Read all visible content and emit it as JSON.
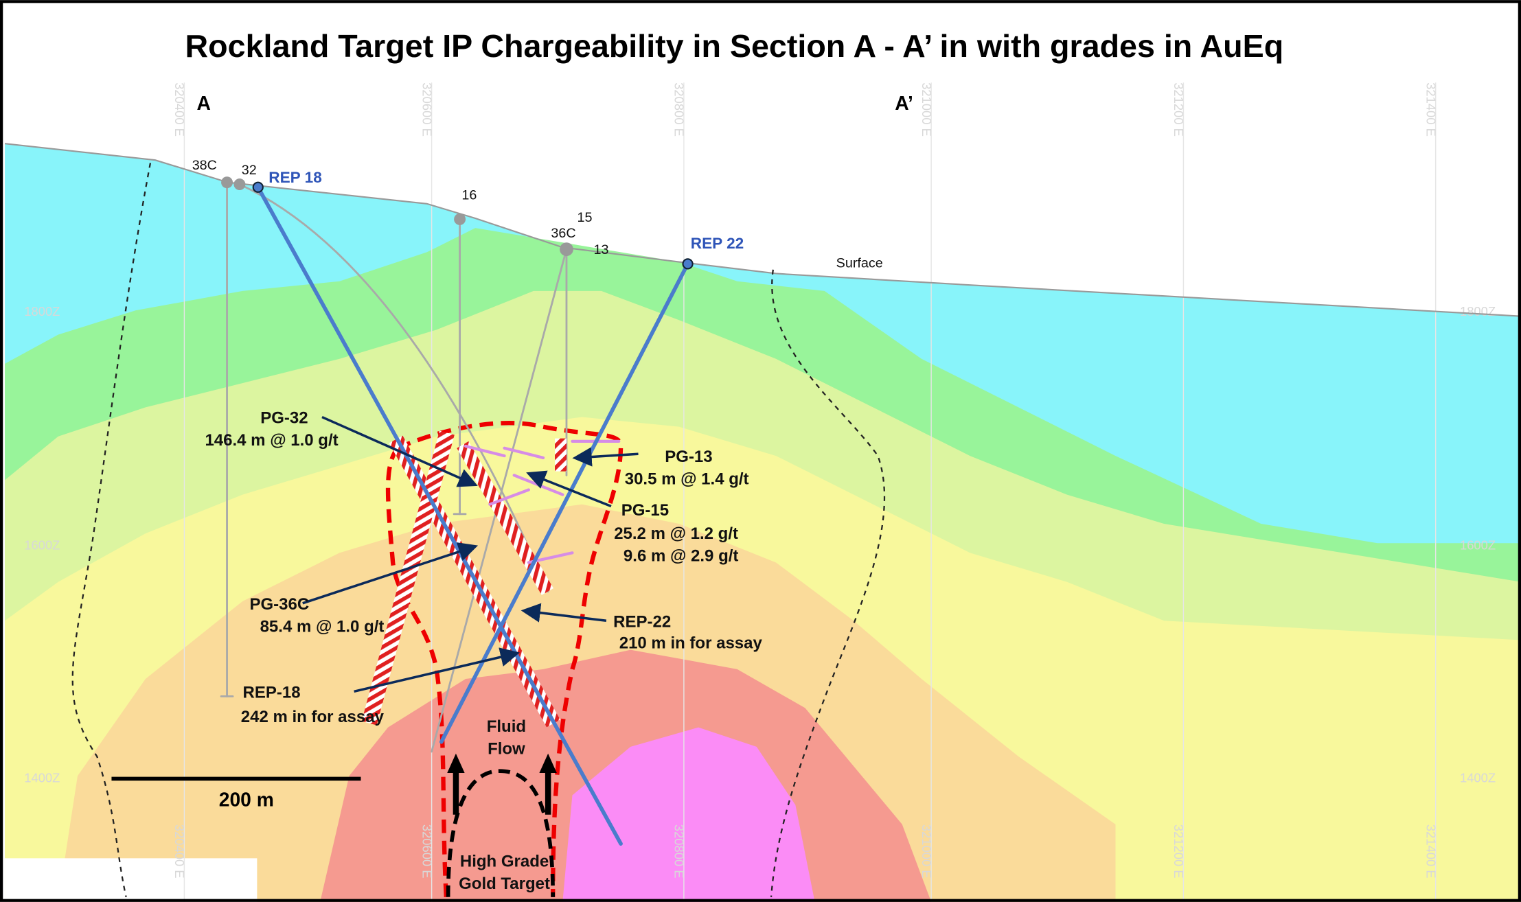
{
  "title": "Rockland Target IP Chargeability in Section A - A’ in with grades in AuEq",
  "section_ends": {
    "start": "A",
    "end": "A’"
  },
  "eastings": [
    "320400 E",
    "320600 E",
    "320800 E",
    "321000 E",
    "321200 E",
    "321400 E"
  ],
  "elevations": [
    "1800Z",
    "1600Z",
    "1400Z"
  ],
  "drill_holes": [
    {
      "label": "38C"
    },
    {
      "label": "32"
    },
    {
      "label": "REP 18"
    },
    {
      "label": "16"
    },
    {
      "label": "15"
    },
    {
      "label": "36C"
    },
    {
      "label": "13"
    },
    {
      "label": "REP 22"
    }
  ],
  "surface_label": "Surface",
  "callouts": [
    {
      "hole": "PG-32",
      "lines": [
        "146.4 m @ 1.0 g/t"
      ]
    },
    {
      "hole": "PG-13",
      "lines": [
        "30.5 m  @ 1.4 g/t"
      ]
    },
    {
      "hole": "PG-15",
      "lines": [
        "25.2 m  @ 1.2 g/t",
        "9.6 m @ 2.9 g/t"
      ]
    },
    {
      "hole": "PG-36C",
      "lines": [
        "85.4 m @ 1.0 g/t"
      ]
    },
    {
      "hole": "REP-22",
      "lines": [
        "210 m in for assay"
      ]
    },
    {
      "hole": "REP-18",
      "lines": [
        "242 m in for assay"
      ]
    }
  ],
  "fluid_flow": [
    "Fluid",
    "Flow"
  ],
  "target": [
    "High Grade",
    "Gold Target"
  ],
  "scale_bar": "200 m"
}
